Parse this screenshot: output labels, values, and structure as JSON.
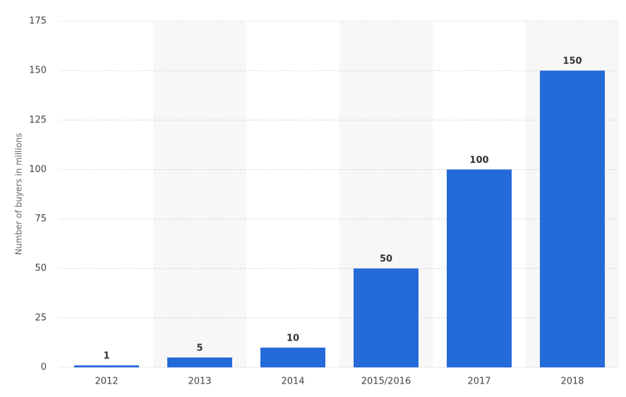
{
  "chart_data": {
    "type": "bar",
    "y_label": "Number of buyers in millions",
    "categories": [
      "2012",
      "2013",
      "2014",
      "2015/2016",
      "2017",
      "2018"
    ],
    "values": [
      1,
      5,
      10,
      50,
      100,
      150
    ],
    "color": "#256ad9",
    "ylim": [
      0,
      175
    ],
    "yticks": [
      0,
      25,
      50,
      75,
      100,
      125,
      150,
      175
    ],
    "grid": true
  }
}
